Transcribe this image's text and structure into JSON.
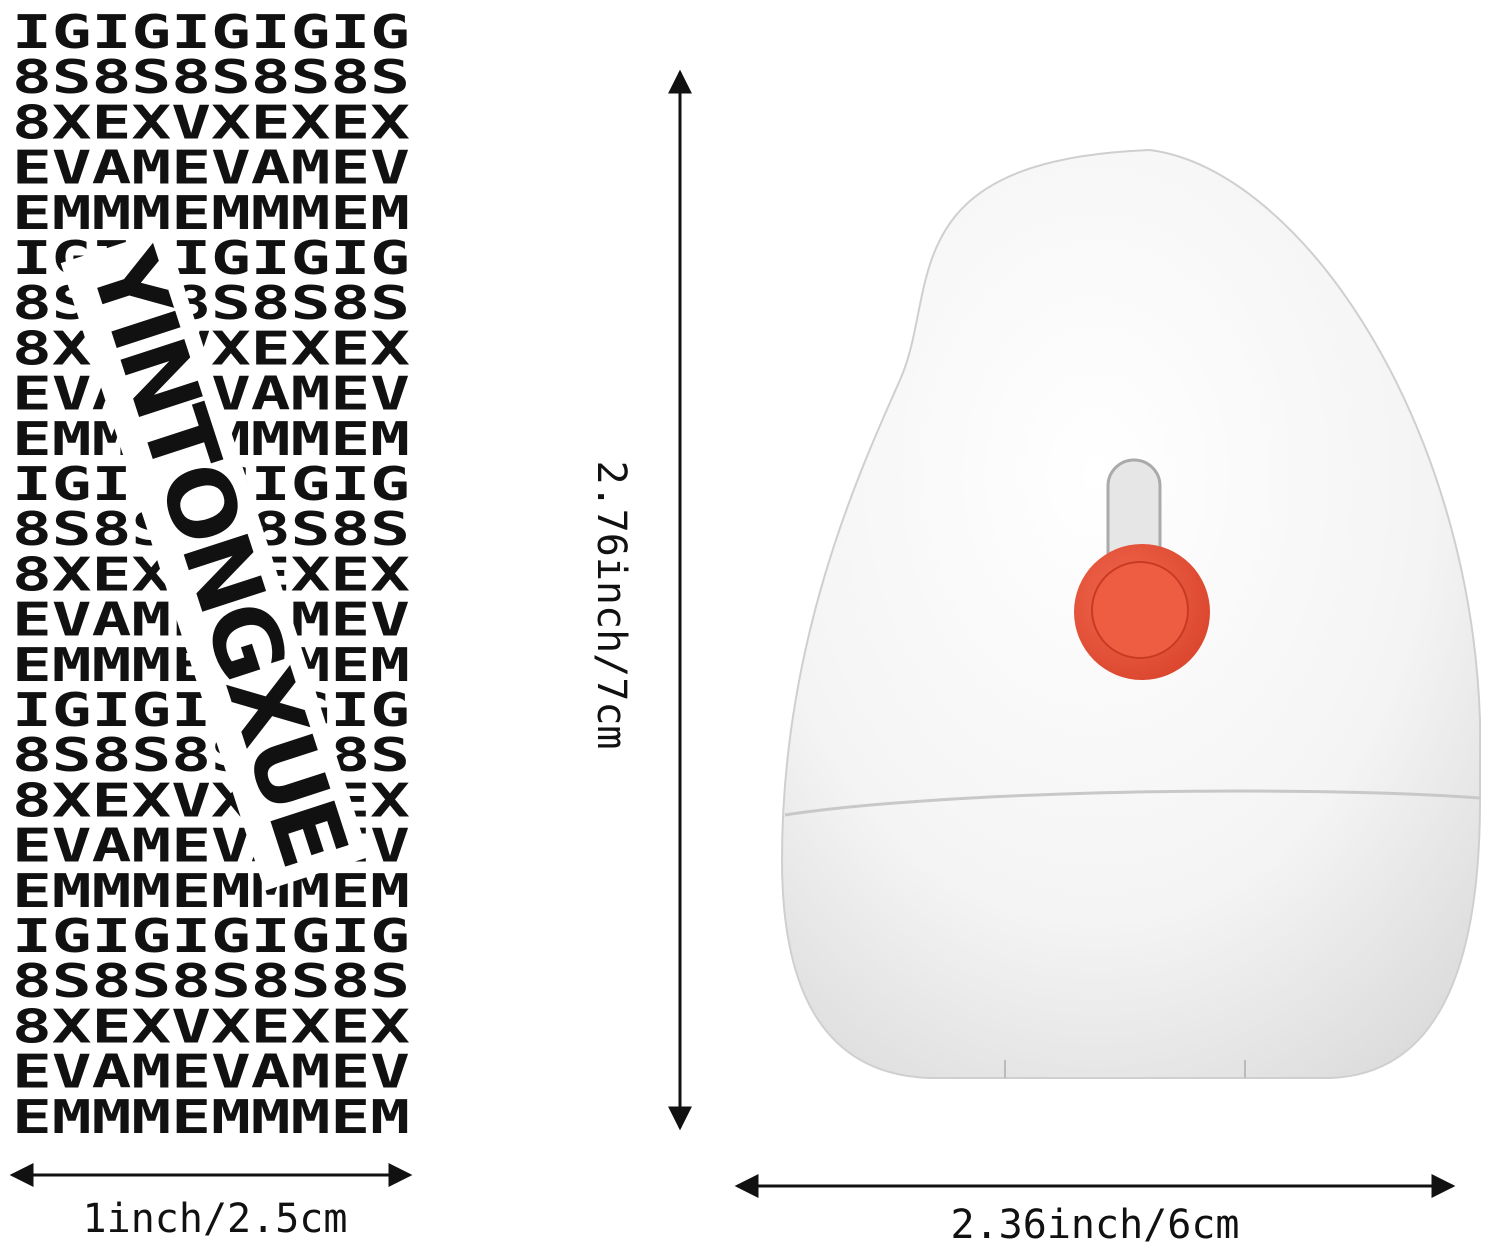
{
  "stamp": {
    "brand": "YINTONGXUE",
    "pattern_rows": [
      "IGIGIGIGIG",
      "8S8S8S8S8S",
      "8XEXVXEXEX",
      "EVAMEVAMEV",
      "EMMMEMMMEM"
    ]
  },
  "dimensions": {
    "stamp_width": "1inch/2.5cm",
    "product_height": "2.76inch/7cm",
    "product_width": "2.36inch/6cm"
  }
}
